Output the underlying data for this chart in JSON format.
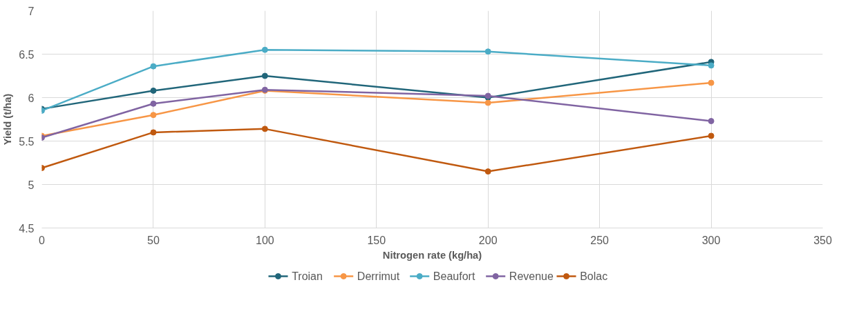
{
  "chart_data": {
    "type": "line",
    "xlabel": "Nitrogen rate (kg/ha)",
    "ylabel": "Yield (t/ha)",
    "x": [
      0,
      50,
      100,
      200,
      300
    ],
    "series": [
      {
        "name": "Troian",
        "color": "#21667a",
        "values": [
          5.87,
          6.08,
          6.25,
          6.0,
          6.41
        ]
      },
      {
        "name": "Derrimut",
        "color": "#f79646",
        "values": [
          5.56,
          5.8,
          6.08,
          5.94,
          6.17
        ]
      },
      {
        "name": "Beaufort",
        "color": "#4bacc6",
        "values": [
          5.85,
          6.36,
          6.55,
          6.53,
          6.37
        ]
      },
      {
        "name": "Revenue",
        "color": "#8064a2",
        "values": [
          5.54,
          5.93,
          6.09,
          6.02,
          5.73
        ]
      },
      {
        "name": "Bolac",
        "color": "#c0590f",
        "values": [
          5.19,
          5.6,
          5.64,
          5.15,
          5.56
        ]
      }
    ],
    "xlim": [
      0,
      350
    ],
    "xticks": [
      0,
      50,
      100,
      150,
      200,
      250,
      300,
      350
    ],
    "ylim": [
      4.5,
      7
    ],
    "yticks": [
      4.5,
      5,
      5.5,
      6,
      6.5,
      7
    ],
    "grid": true,
    "legend": "bottom",
    "marker": "circle",
    "line_style": "solid"
  }
}
